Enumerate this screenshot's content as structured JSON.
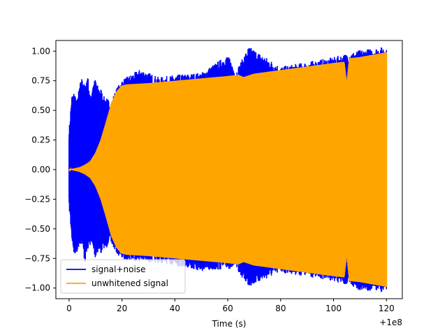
{
  "chart_data": {
    "type": "line",
    "title": "",
    "xlabel": "Time (s)",
    "ylabel": "",
    "x_offset_label": "+1e8",
    "xlim": [
      -5,
      126
    ],
    "ylim": [
      -1.09,
      1.09
    ],
    "x_ticks": [
      0,
      20,
      40,
      60,
      80,
      100,
      120
    ],
    "x_tick_labels": [
      "0",
      "20",
      "40",
      "60",
      "80",
      "100",
      "120"
    ],
    "y_ticks": [
      1.0,
      0.75,
      0.5,
      0.25,
      0.0,
      -0.25,
      -0.5,
      -0.75,
      -1.0
    ],
    "y_tick_labels": [
      "1.00",
      "0.75",
      "0.50",
      "0.25",
      "0.00",
      "−0.25",
      "−0.50",
      "−0.75",
      "−1.00"
    ],
    "grid": false,
    "legend_position": "lower-left",
    "series": [
      {
        "name": "signal+noise",
        "color": "#0000ff",
        "x": [
          0,
          1,
          2,
          3,
          4,
          5,
          6,
          7,
          8,
          9,
          10,
          11,
          12,
          13,
          14,
          15,
          16,
          17,
          18,
          20,
          27,
          34,
          40,
          50,
          60,
          63,
          68,
          80,
          100,
          105,
          110,
          120
        ],
        "upper": [
          0.3,
          0.59,
          0.62,
          0.55,
          0.68,
          0.75,
          0.66,
          0.77,
          0.58,
          0.69,
          0.73,
          0.66,
          0.65,
          0.58,
          0.57,
          0.55,
          0.54,
          0.6,
          0.65,
          0.72,
          0.81,
          0.74,
          0.76,
          0.78,
          0.93,
          0.79,
          1.0,
          0.83,
          0.91,
          0.94,
          0.97,
          1.0
        ],
        "lower": [
          -0.28,
          -0.55,
          -0.7,
          -0.66,
          -0.59,
          -0.6,
          -0.76,
          -0.64,
          -0.6,
          -0.63,
          -0.72,
          -0.65,
          -0.68,
          -0.62,
          -0.64,
          -0.57,
          -0.6,
          -0.63,
          -0.67,
          -0.72,
          -0.74,
          -0.75,
          -0.77,
          -0.82,
          -0.8,
          -0.8,
          -0.95,
          -0.83,
          -0.9,
          -0.94,
          -0.98,
          -1.0
        ]
      },
      {
        "name": "unwhitened signal",
        "color": "#ffa500",
        "x": [
          0,
          2,
          4,
          6,
          8,
          10,
          12,
          14,
          16,
          18,
          20,
          22,
          30,
          40,
          50,
          60,
          64,
          66,
          70,
          80,
          90,
          100,
          104,
          105,
          106,
          110,
          115,
          120
        ],
        "upper": [
          0.0,
          0.01,
          0.02,
          0.04,
          0.07,
          0.14,
          0.25,
          0.4,
          0.56,
          0.66,
          0.71,
          0.72,
          0.73,
          0.75,
          0.77,
          0.79,
          0.8,
          0.78,
          0.81,
          0.84,
          0.87,
          0.9,
          0.91,
          0.73,
          0.94,
          0.95,
          0.97,
          0.99
        ],
        "lower": [
          0.0,
          -0.01,
          -0.02,
          -0.04,
          -0.07,
          -0.14,
          -0.25,
          -0.4,
          -0.56,
          -0.66,
          -0.71,
          -0.72,
          -0.73,
          -0.75,
          -0.77,
          -0.79,
          -0.8,
          -0.78,
          -0.81,
          -0.84,
          -0.87,
          -0.9,
          -0.91,
          -0.72,
          -0.94,
          -0.95,
          -0.97,
          -0.99
        ]
      }
    ]
  }
}
